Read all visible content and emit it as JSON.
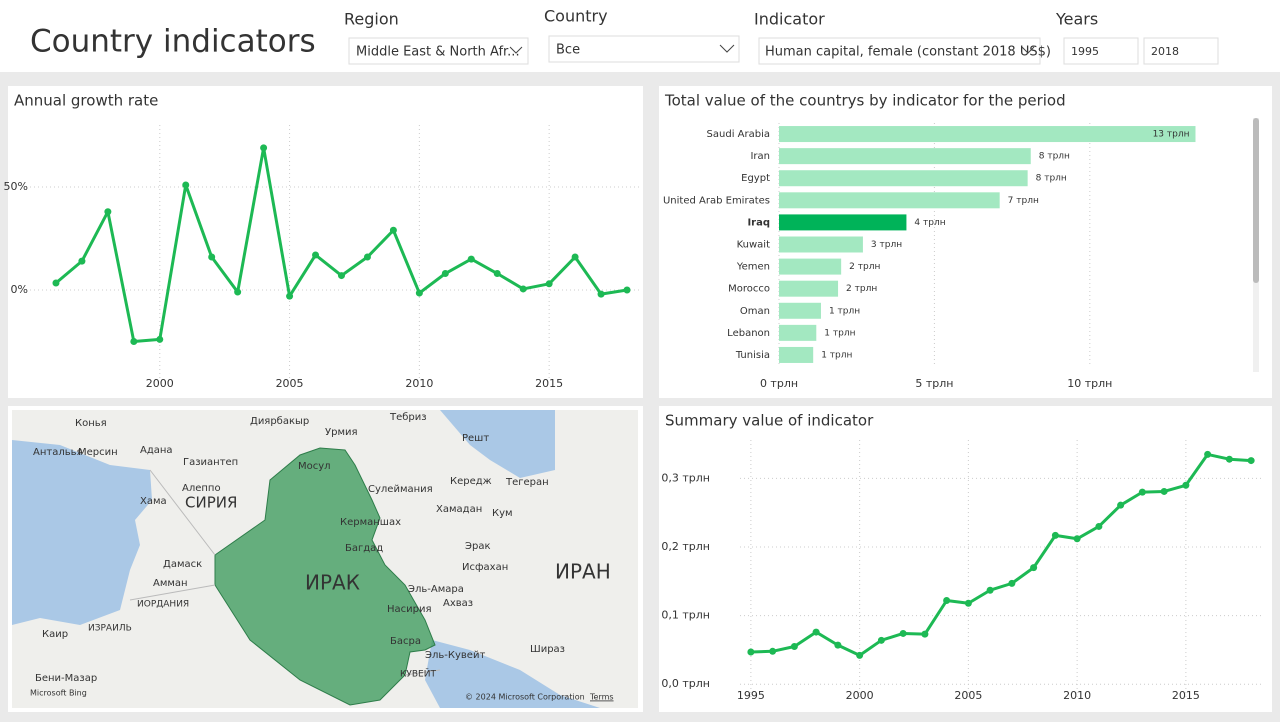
{
  "header": {
    "title": "Country indicators",
    "filters": [
      {
        "label": "Region",
        "value": "Middle East & North Afr..."
      },
      {
        "label": "Country",
        "value": "Все"
      },
      {
        "label": "Indicator",
        "value": "Human capital, female (constant 2018 US$)"
      },
      {
        "label": "Years",
        "from": "1995",
        "to": "2018"
      }
    ]
  },
  "chart_data": [
    {
      "type": "line",
      "title": "Annual growth rate",
      "color": "#1db954",
      "x": [
        1996,
        1997,
        1998,
        1999,
        2000,
        2001,
        2002,
        2003,
        2004,
        2005,
        2006,
        2007,
        2008,
        2009,
        2010,
        2011,
        2012,
        2013,
        2014,
        2015,
        2016,
        2017,
        2018
      ],
      "values": [
        3.4,
        14,
        38,
        -25,
        -24,
        51,
        16,
        -1,
        69,
        -3,
        17,
        7,
        16,
        29,
        -1.5,
        8,
        15,
        8,
        0.5,
        3,
        16,
        -2,
        0
      ],
      "xlim": [
        1995,
        2018.5
      ],
      "xticks": [
        2000,
        2005,
        2010,
        2015
      ],
      "ylim": [
        -43.7,
        80.1
      ],
      "yticks": [
        {
          "value": 0,
          "label": "0%"
        },
        {
          "value": 50,
          "label": "50%"
        }
      ],
      "grid": true
    },
    {
      "type": "hbar",
      "title": "Total value of the countrys by indicator for the period",
      "categories": [
        "Saudi Arabia",
        "Iran",
        "Egypt",
        "United Arab Emirates",
        "Iraq",
        "Kuwait",
        "Yemen",
        "Morocco",
        "Oman",
        "Lebanon",
        "Tunisia"
      ],
      "values": [
        13.4,
        8.1,
        8.0,
        7.1,
        4.1,
        2.7,
        2.0,
        1.9,
        1.35,
        1.2,
        1.1
      ],
      "value_labels": [
        "13 трлн",
        "8 трлн",
        "8 трлн",
        "7 трлн",
        "4 трлн",
        "3 трлн",
        "2 трлн",
        "2 трлн",
        "1 трлн",
        "1 трлн",
        "1 трлн"
      ],
      "color": "#a3e8c1",
      "highlight_color": "#00b359",
      "highlight": "Iraq",
      "xlim": [
        0,
        14.8
      ],
      "xticks": [
        {
          "value": 0,
          "label": "0 трлн"
        },
        {
          "value": 5,
          "label": "5 трлн"
        },
        {
          "value": 10,
          "label": "10 трлн"
        }
      ],
      "grid": true
    },
    {
      "type": "line",
      "title": "Summary value of indicator",
      "color": "#1db954",
      "x": [
        1995,
        1996,
        1997,
        1998,
        1999,
        2000,
        2001,
        2002,
        2003,
        2004,
        2005,
        2006,
        2007,
        2008,
        2009,
        2010,
        2011,
        2012,
        2013,
        2014,
        2015,
        2016,
        2017,
        2018
      ],
      "values": [
        0.047,
        0.048,
        0.055,
        0.076,
        0.057,
        0.042,
        0.064,
        0.074,
        0.073,
        0.122,
        0.118,
        0.137,
        0.147,
        0.17,
        0.217,
        0.212,
        0.23,
        0.261,
        0.28,
        0.281,
        0.29,
        0.335,
        0.328,
        0.326
      ],
      "xlim": [
        1994.5,
        2018.5
      ],
      "xticks": [
        1995,
        2000,
        2005,
        2010,
        2015
      ],
      "ylim": [
        -0.023,
        0.356
      ],
      "yticks": [
        {
          "value": 0,
          "label": "0,0 трлн"
        },
        {
          "value": 0.1,
          "label": "0,1 трлн"
        },
        {
          "value": 0.2,
          "label": "0,2 трлн"
        },
        {
          "value": 0.3,
          "label": "0,3 трлн"
        }
      ],
      "grid": true
    }
  ],
  "map": {
    "labels": [
      "Конья",
      "Адана",
      "Антальья",
      "Мерсин",
      "Газиантеп",
      "Диярбакыр",
      "Тебриз",
      "Урмия",
      "Решт",
      "Хама",
      "Алеппо",
      "СИРИЯ",
      "Мосул",
      "Сулеймания",
      "Кередж",
      "Тегеран",
      "Хамадан",
      "Кум",
      "Керманшах",
      "Багдад",
      "Дамаск",
      "Амман",
      "ИРАК",
      "Эрак",
      "Исфахан",
      "ИРАН",
      "ИОРДАНИЯ",
      "ИЗРАИЛЬ",
      "Эль-Амара",
      "Ахваз",
      "Насирия",
      "Басра",
      "Каир",
      "Эль-Кувейт",
      "КУВЕЙТ",
      "Шираз",
      "Бени-Мазар"
    ],
    "copyright": "© 2024 Microsoft Corporation",
    "terms": "Terms",
    "provider": "Microsoft Bing"
  }
}
